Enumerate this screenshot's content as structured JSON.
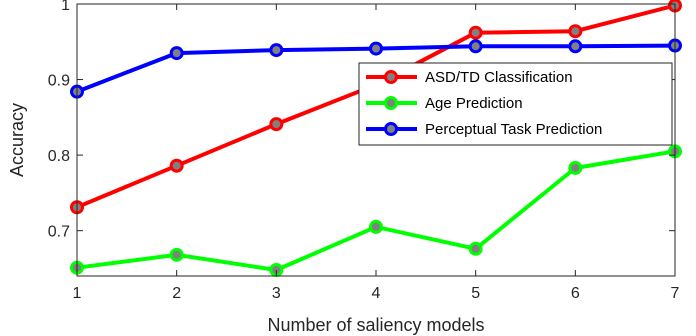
{
  "chart_data": {
    "type": "line",
    "title": "",
    "xlabel": "Number of saliency models",
    "ylabel": "Accuracy",
    "xlim": [
      1,
      7
    ],
    "ylim": [
      0.64,
      1.0
    ],
    "xticks": [
      1,
      2,
      3,
      4,
      5,
      6,
      7
    ],
    "yticks": [
      0.7,
      0.8,
      0.9,
      1
    ],
    "ytick_labels": [
      "0.7",
      "0.8",
      "0.9",
      "1"
    ],
    "grid": false,
    "legend_position": "top-right",
    "x": [
      1,
      2,
      3,
      4,
      5,
      6,
      7
    ],
    "series": [
      {
        "name": "ASD/TD Classification",
        "color": "#ff0000",
        "values": [
          0.731,
          0.786,
          0.841,
          0.893,
          0.962,
          0.964,
          0.998
        ]
      },
      {
        "name": "Age Prediction",
        "color": "#00ff00",
        "values": [
          0.651,
          0.668,
          0.648,
          0.705,
          0.676,
          0.783,
          0.805
        ]
      },
      {
        "name": "Perceptual Task Prediction",
        "color": "#0000ff",
        "values": [
          0.884,
          0.935,
          0.939,
          0.941,
          0.944,
          0.944,
          0.945
        ]
      }
    ],
    "marker_fill": "#808080"
  }
}
